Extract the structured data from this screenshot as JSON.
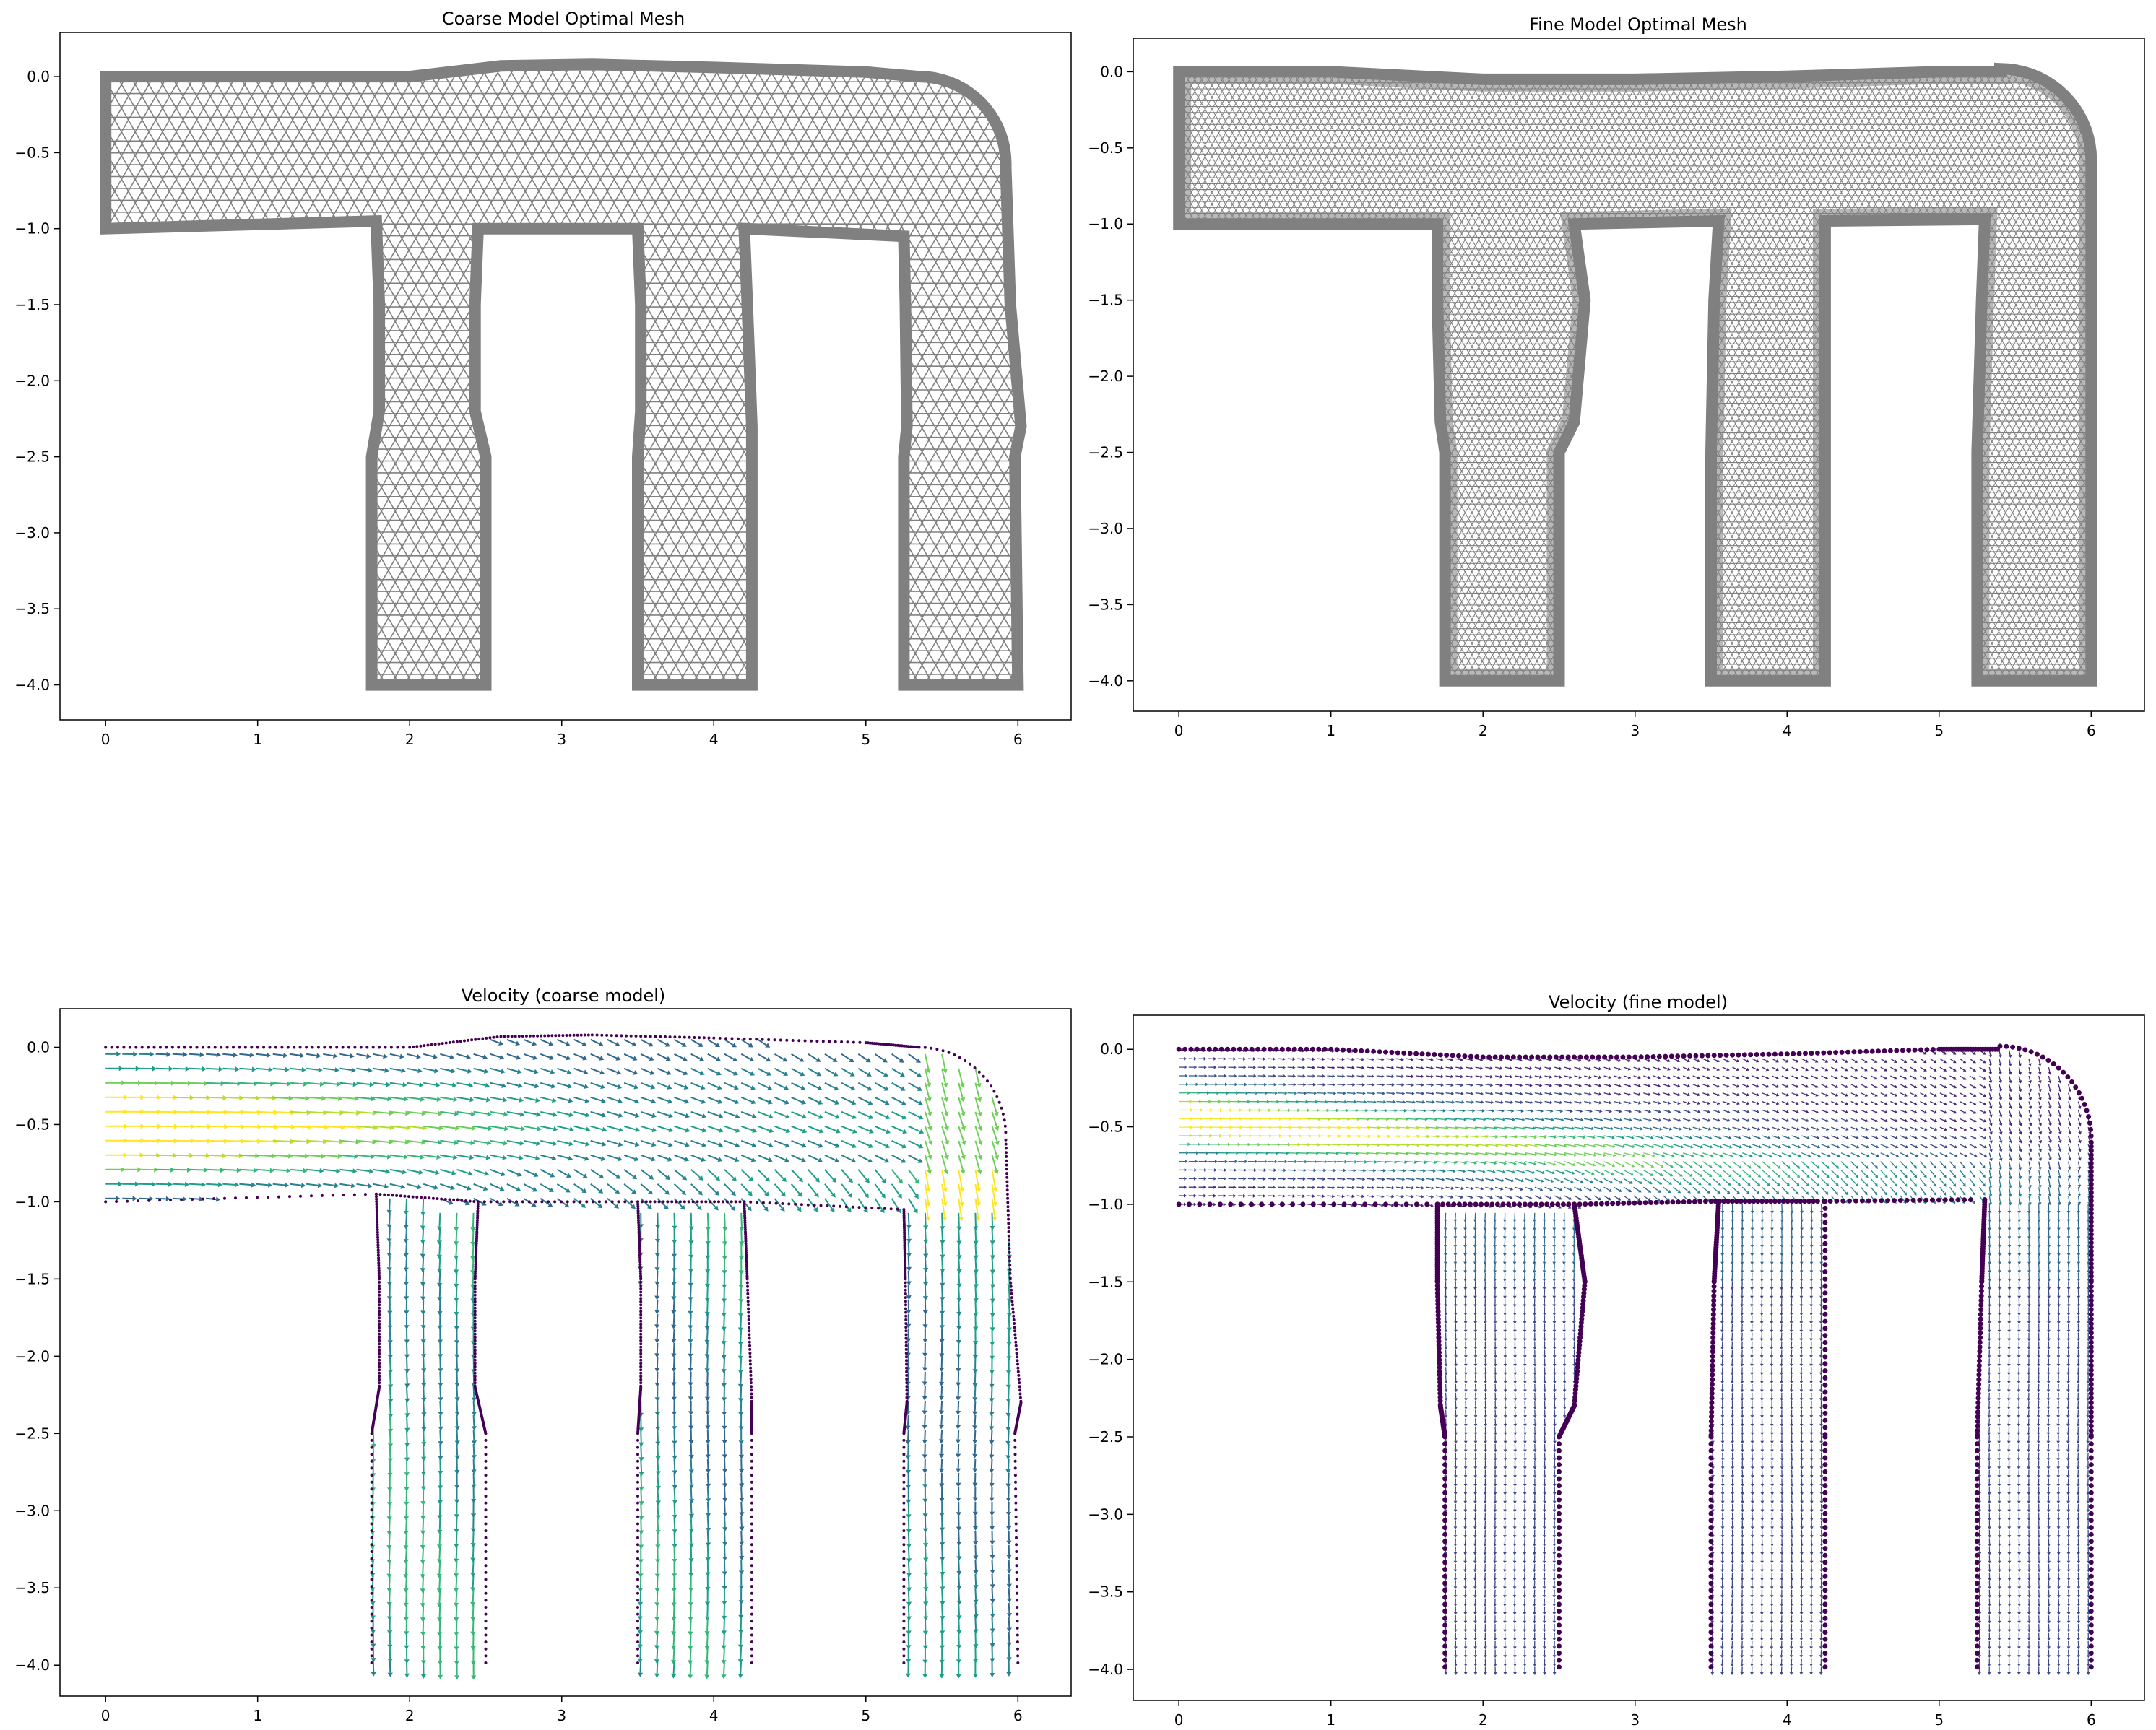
{
  "figure": {
    "panels": [
      {
        "id": "coarse-mesh",
        "title": "Coarse Model Optimal Mesh"
      },
      {
        "id": "fine-mesh",
        "title": "Fine Model Optimal Mesh"
      },
      {
        "id": "coarse-velocity",
        "title": "Velocity (coarse model)"
      },
      {
        "id": "fine-velocity",
        "title": "Velocity (fine model)"
      }
    ]
  },
  "chart_data": [
    {
      "type": "mesh",
      "title": "Coarse Model Optimal Mesh",
      "xlim": [
        -0.3,
        6.35
      ],
      "ylim": [
        -4.23,
        0.29
      ],
      "xticks": [
        0,
        1,
        2,
        3,
        4,
        5,
        6
      ],
      "xtick_labels": [
        "0",
        "1",
        "2",
        "3",
        "4",
        "5",
        "6"
      ],
      "yticks": [
        0.0,
        -0.5,
        -1.0,
        -1.5,
        -2.0,
        -2.5,
        -3.0,
        -3.5,
        -4.0
      ],
      "ytick_labels": [
        "0.0",
        "−0.5",
        "−1.0",
        "−1.5",
        "−2.0",
        "−2.5",
        "−3.0",
        "−3.5",
        "−4.0"
      ],
      "mesh_color": "#808080",
      "mesh_spacing": 0.09,
      "top_boundary": [
        [
          0,
          0.0
        ],
        [
          1,
          0.0
        ],
        [
          2,
          0.0
        ],
        [
          2.6,
          0.07
        ],
        [
          3.2,
          0.08
        ],
        [
          4,
          0.06
        ],
        [
          5,
          0.03
        ],
        [
          5.35,
          0.0
        ]
      ],
      "bottom_boundary": [
        [
          0,
          -1.0
        ],
        [
          1.78,
          -0.95
        ],
        [
          2.45,
          -1.0
        ],
        [
          3.5,
          -1.0
        ],
        [
          4.2,
          -1.0
        ],
        [
          5.25,
          -1.05
        ]
      ],
      "corner": {
        "center": [
          5.35,
          -0.57
        ],
        "radius": 0.57
      },
      "outer_right": [
        [
          5.92,
          -0.6
        ],
        [
          5.95,
          -1.5
        ],
        [
          6.02,
          -2.3
        ],
        [
          5.98,
          -2.5
        ],
        [
          6.0,
          -4.0
        ]
      ],
      "channels": [
        {
          "left": [
            [
              1.78,
              -0.95
            ],
            [
              1.8,
              -1.5
            ],
            [
              1.8,
              -2.2
            ],
            [
              1.75,
              -2.5
            ],
            [
              1.75,
              -4.0
            ]
          ],
          "right": [
            [
              2.45,
              -1.0
            ],
            [
              2.43,
              -1.5
            ],
            [
              2.43,
              -2.2
            ],
            [
              2.5,
              -2.5
            ],
            [
              2.5,
              -4.0
            ]
          ]
        },
        {
          "left": [
            [
              3.5,
              -1.0
            ],
            [
              3.52,
              -1.5
            ],
            [
              3.52,
              -2.2
            ],
            [
              3.5,
              -2.5
            ],
            [
              3.5,
              -4.0
            ]
          ],
          "right": [
            [
              4.2,
              -1.0
            ],
            [
              4.22,
              -1.5
            ],
            [
              4.25,
              -2.3
            ],
            [
              4.25,
              -2.5
            ],
            [
              4.25,
              -4.0
            ]
          ]
        }
      ],
      "last_channel_left": [
        [
          5.25,
          -1.05
        ],
        [
          5.26,
          -1.5
        ],
        [
          5.27,
          -2.3
        ],
        [
          5.25,
          -2.5
        ],
        [
          5.25,
          -4.0
        ]
      ]
    },
    {
      "type": "mesh",
      "title": "Fine Model Optimal Mesh",
      "xlim": [
        -0.3,
        6.35
      ],
      "ylim": [
        -4.2,
        0.22
      ],
      "xticks": [
        0,
        1,
        2,
        3,
        4,
        5,
        6
      ],
      "xtick_labels": [
        "0",
        "1",
        "2",
        "3",
        "4",
        "5",
        "6"
      ],
      "yticks": [
        0.0,
        -0.5,
        -1.0,
        -1.5,
        -2.0,
        -2.5,
        -3.0,
        -3.5,
        -4.0
      ],
      "ytick_labels": [
        "0.0",
        "−0.5",
        "−1.0",
        "−1.5",
        "−2.0",
        "−2.5",
        "−3.0",
        "−3.5",
        "−4.0"
      ],
      "mesh_color": "#808080",
      "mesh_spacing": 0.045,
      "top_boundary": [
        [
          0,
          0.0
        ],
        [
          1,
          0.0
        ],
        [
          2,
          -0.05
        ],
        [
          3,
          -0.05
        ],
        [
          4,
          -0.03
        ],
        [
          5,
          0.0
        ],
        [
          5.4,
          0.0
        ]
      ],
      "bottom_boundary": [
        [
          0,
          -1.0
        ],
        [
          1.7,
          -1.0
        ],
        [
          2.6,
          -1.0
        ],
        [
          3.5,
          -0.98
        ],
        [
          4.2,
          -0.98
        ],
        [
          5.25,
          -0.97
        ]
      ],
      "corner": {
        "center": [
          5.4,
          -0.58
        ],
        "radius": 0.6
      },
      "outer_right": [
        [
          6.0,
          -0.6
        ],
        [
          6.0,
          -1.5
        ],
        [
          6.0,
          -2.5
        ],
        [
          6.0,
          -4.0
        ]
      ],
      "channels": [
        {
          "left": [
            [
              1.7,
              -1.0
            ],
            [
              1.7,
              -1.5
            ],
            [
              1.72,
              -2.3
            ],
            [
              1.75,
              -2.5
            ],
            [
              1.75,
              -4.0
            ]
          ],
          "right": [
            [
              2.6,
              -1.0
            ],
            [
              2.67,
              -1.5
            ],
            [
              2.6,
              -2.3
            ],
            [
              2.5,
              -2.5
            ],
            [
              2.5,
              -4.0
            ]
          ]
        },
        {
          "left": [
            [
              3.55,
              -0.98
            ],
            [
              3.52,
              -1.5
            ],
            [
              3.5,
              -2.5
            ],
            [
              3.5,
              -4.0
            ]
          ],
          "right": [
            [
              4.25,
              -0.98
            ],
            [
              4.25,
              -2.5
            ],
            [
              4.25,
              -4.0
            ]
          ]
        }
      ],
      "last_channel_left": [
        [
          5.3,
          -0.97
        ],
        [
          5.28,
          -1.5
        ],
        [
          5.25,
          -2.5
        ],
        [
          5.25,
          -4.0
        ]
      ]
    },
    {
      "type": "quiver",
      "title": "Velocity (coarse model)",
      "colormap": "viridis",
      "xlim": [
        -0.3,
        6.35
      ],
      "ylim": [
        -4.2,
        0.25
      ],
      "xticks": [
        0,
        1,
        2,
        3,
        4,
        5,
        6
      ],
      "xtick_labels": [
        "0",
        "1",
        "2",
        "3",
        "4",
        "5",
        "6"
      ],
      "yticks": [
        0.0,
        -0.5,
        -1.0,
        -1.5,
        -2.0,
        -2.5,
        -3.0,
        -3.5,
        -4.0
      ],
      "ytick_labels": [
        "0.0",
        "−0.5",
        "−1.0",
        "−1.5",
        "−2.0",
        "−2.5",
        "−3.0",
        "−3.5",
        "−4.0"
      ],
      "grid_spacing": 0.11,
      "viridis": [
        "#440154",
        "#482878",
        "#3e4989",
        "#31688e",
        "#26828e",
        "#1f9e89",
        "#35b779",
        "#6ece58",
        "#b5de2b",
        "#fde725"
      ],
      "flow": "inlet at x=0 (y from -1 to 0), fluid moves right then down through three outlets at y=-4"
    },
    {
      "type": "quiver",
      "title": "Velocity (fine model)",
      "colormap": "viridis",
      "xlim": [
        -0.3,
        6.35
      ],
      "ylim": [
        -4.2,
        0.22
      ],
      "xticks": [
        0,
        1,
        2,
        3,
        4,
        5,
        6
      ],
      "xtick_labels": [
        "0",
        "1",
        "2",
        "3",
        "4",
        "5",
        "6"
      ],
      "yticks": [
        0.0,
        -0.5,
        -1.0,
        -1.5,
        -2.0,
        -2.5,
        -3.0,
        -3.5,
        -4.0
      ],
      "ytick_labels": [
        "0.0",
        "−0.5",
        "−1.0",
        "−1.5",
        "−2.0",
        "−2.5",
        "−3.0",
        "−3.5",
        "−4.0"
      ],
      "grid_spacing": 0.065,
      "viridis": [
        "#440154",
        "#482878",
        "#3e4989",
        "#31688e",
        "#26828e",
        "#1f9e89",
        "#35b779",
        "#6ece58",
        "#b5de2b",
        "#fde725"
      ],
      "flow": "inlet at x=0 (y from -1 to 0), fluid moves right then down through three outlets at y=-4"
    }
  ]
}
